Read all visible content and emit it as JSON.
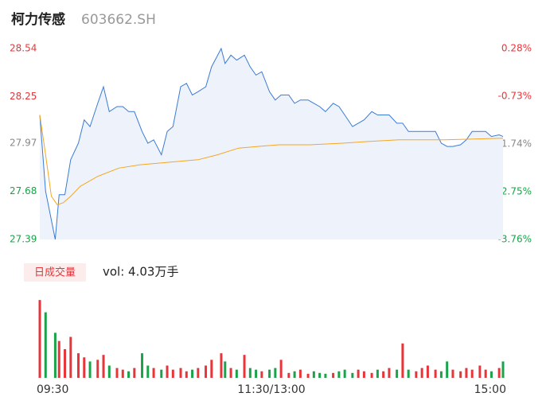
{
  "chart_data": {
    "type": "line",
    "title": "柯力传感",
    "subtitle": "603662.SH",
    "xlim": [
      0,
      240
    ],
    "xticks": [
      {
        "value": 0,
        "label": "09:30"
      },
      {
        "value": 120,
        "label": "11:30/13:00"
      },
      {
        "value": 240,
        "label": "15:00"
      }
    ],
    "ylim": [
      27.39,
      28.54
    ],
    "yticks": [
      28.54,
      28.25,
      27.97,
      27.68,
      27.39
    ],
    "y2lim": [
      -3.76,
      0.28
    ],
    "y2ticks": [
      {
        "value": 0.28,
        "label": "0.28%"
      },
      {
        "value": -0.73,
        "label": "-0.73%"
      },
      {
        "value": -1.74,
        "label": "-1.74%"
      },
      {
        "value": -2.75,
        "label": "-2.75%"
      },
      {
        "value": -3.76,
        "label": "-3.76%"
      }
    ],
    "up_color": "#e8353a",
    "down_color": "#1aa34a",
    "flat_color": "#888888",
    "area_color": "#eef3fb",
    "series": [
      {
        "color": "#3a7bd5",
        "x": [
          0,
          3,
          8,
          10,
          13,
          16,
          20,
          23,
          26,
          30,
          33,
          36,
          40,
          43,
          46,
          49,
          53,
          56,
          59,
          63,
          66,
          69,
          73,
          76,
          79,
          82,
          86,
          89,
          94,
          96,
          99,
          102,
          106,
          109,
          112,
          115,
          119,
          122,
          125,
          129,
          132,
          135,
          139,
          142,
          145,
          148,
          152,
          155,
          158,
          162,
          165,
          168,
          172,
          175,
          178,
          181,
          185,
          188,
          191,
          195,
          198,
          201,
          205,
          208,
          211,
          214,
          218,
          221,
          224,
          228,
          231,
          234,
          238,
          240
        ],
        "values": [
          28.14,
          27.68,
          27.39,
          27.66,
          27.66,
          27.87,
          27.97,
          28.11,
          28.07,
          28.21,
          28.31,
          28.16,
          28.19,
          28.19,
          28.16,
          28.16,
          28.04,
          27.97,
          27.99,
          27.9,
          28.04,
          28.07,
          28.31,
          28.33,
          28.26,
          28.28,
          28.31,
          28.43,
          28.54,
          28.45,
          28.5,
          28.47,
          28.5,
          28.43,
          28.38,
          28.4,
          28.28,
          28.23,
          28.26,
          28.26,
          28.21,
          28.23,
          28.23,
          28.21,
          28.19,
          28.16,
          28.21,
          28.19,
          28.14,
          28.07,
          28.09,
          28.11,
          28.16,
          28.14,
          28.14,
          28.14,
          28.09,
          28.09,
          28.04,
          28.04,
          28.04,
          28.04,
          28.04,
          27.97,
          27.95,
          27.95,
          27.96,
          27.99,
          28.04,
          28.04,
          28.04,
          28.01,
          28.02,
          28.01
        ]
      },
      {
        "color": "#f5a623",
        "x": [
          0,
          3,
          6,
          9,
          12,
          16,
          21,
          30,
          41,
          52,
          62,
          72,
          82,
          92,
          103,
          113,
          124,
          140,
          157,
          170,
          186,
          210,
          240
        ],
        "values": [
          28.14,
          27.9,
          27.65,
          27.6,
          27.61,
          27.65,
          27.71,
          27.77,
          27.82,
          27.84,
          27.85,
          27.86,
          27.87,
          27.9,
          27.94,
          27.95,
          27.96,
          27.96,
          27.97,
          27.98,
          27.99,
          27.99,
          28.0
        ]
      }
    ],
    "volume": {
      "label": "日成交量",
      "text": "vol: 4.03万手",
      "ylim": [
        0,
        100
      ],
      "values": [
        95,
        80,
        55,
        45,
        35,
        50,
        30,
        25,
        20,
        22,
        28,
        15,
        12,
        10,
        8,
        12,
        30,
        15,
        12,
        10,
        15,
        10,
        12,
        8,
        10,
        12,
        15,
        22,
        30,
        20,
        12,
        10,
        28,
        12,
        10,
        8,
        10,
        12,
        22,
        6,
        8,
        10,
        5,
        8,
        6,
        5,
        6,
        8,
        10,
        6,
        10,
        8,
        6,
        10,
        8,
        12,
        10,
        42,
        10,
        8,
        12,
        15,
        10,
        8,
        20,
        10,
        8,
        12,
        10,
        15,
        10,
        8,
        12,
        20
      ]
    }
  }
}
